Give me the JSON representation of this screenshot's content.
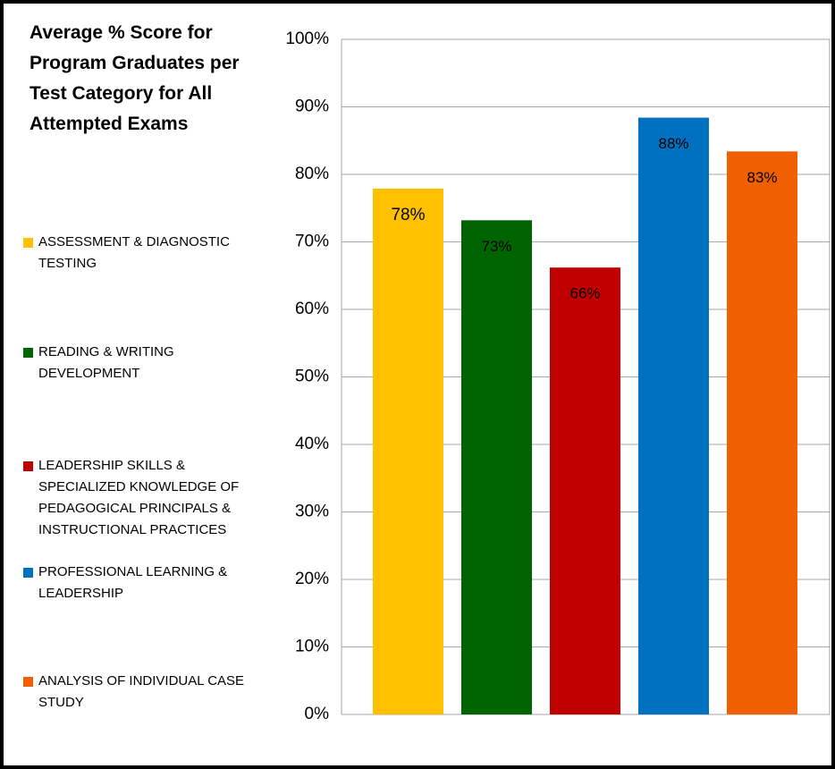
{
  "chart_data": {
    "type": "bar",
    "title": "Average % Score for Program Graduates per Test Category for All Attempted Exams",
    "categories": [
      "ASSESSMENT & DIAGNOSTIC TESTING",
      "READING & WRITING DEVELOPMENT",
      "LEADERSHIP SKILLS & SPECIALIZED KNOWLEDGE OF PEDAGOGICAL PRINCIPALS & INSTRUCTIONAL PRACTICES",
      "PROFESSIONAL LEARNING & LEADERSHIP",
      "ANALYSIS OF INDIVIDUAL CASE STUDY"
    ],
    "values": [
      77.9,
      73.2,
      66.2,
      88.4,
      83.4
    ],
    "value_labels": [
      "78%",
      "73%",
      "66%",
      "88%",
      "83%"
    ],
    "colors": [
      "#ffc000",
      "#006400",
      "#c00000",
      "#0070c0",
      "#f06000"
    ],
    "ylim": [
      0,
      100
    ],
    "yticks": [
      {
        "value": 0,
        "label": "0%"
      },
      {
        "value": 10,
        "label": "10%"
      },
      {
        "value": 20,
        "label": "20%"
      },
      {
        "value": 30,
        "label": "30%"
      },
      {
        "value": 40,
        "label": "40%"
      },
      {
        "value": 50,
        "label": "50%"
      },
      {
        "value": 60,
        "label": "60%"
      },
      {
        "value": 70,
        "label": "70%"
      },
      {
        "value": 80,
        "label": "80%"
      },
      {
        "value": 90,
        "label": "90%"
      },
      {
        "value": 100,
        "label": "100%"
      }
    ],
    "grid": true,
    "legend": "left"
  }
}
